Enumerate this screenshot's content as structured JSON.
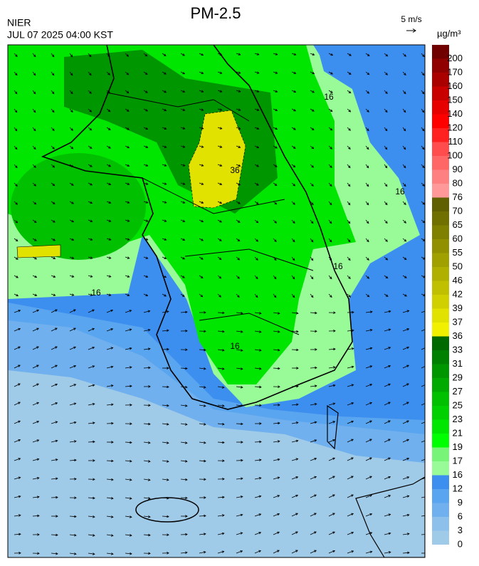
{
  "title": "PM-2.5",
  "source": "NIER",
  "time": "JUL 07 2025 04:00 KST",
  "wind_scale": "5 m/s",
  "unit": "µg/m³",
  "colorbar": {
    "ticks": [
      0,
      3,
      6,
      9,
      12,
      16,
      17,
      19,
      21,
      23,
      25,
      27,
      29,
      31,
      33,
      36,
      37,
      39,
      42,
      46,
      50,
      55,
      60,
      65,
      70,
      76,
      80,
      90,
      100,
      110,
      120,
      140,
      150,
      160,
      170,
      200
    ],
    "colors": [
      "#a0cbe8",
      "#8ec0ec",
      "#70b0ee",
      "#5aa5ef",
      "#3d8fef",
      "#98fb98",
      "#78f578",
      "#00ff00",
      "#00e600",
      "#00d000",
      "#00c000",
      "#00aa00",
      "#009600",
      "#008000",
      "#006a00",
      "#f0f000",
      "#e2e200",
      "#d0d000",
      "#c0c000",
      "#b0b000",
      "#a0a000",
      "#909000",
      "#808000",
      "#707000",
      "#606000",
      "#ff9999",
      "#ff8080",
      "#ff6666",
      "#ff4c4c",
      "#ff2020",
      "#ff0000",
      "#e60000",
      "#c80000",
      "#aa0000",
      "#900000",
      "#700000"
    ]
  },
  "contour_labels": [
    "16",
    "16",
    "16",
    "16",
    "36",
    "16"
  ]
}
